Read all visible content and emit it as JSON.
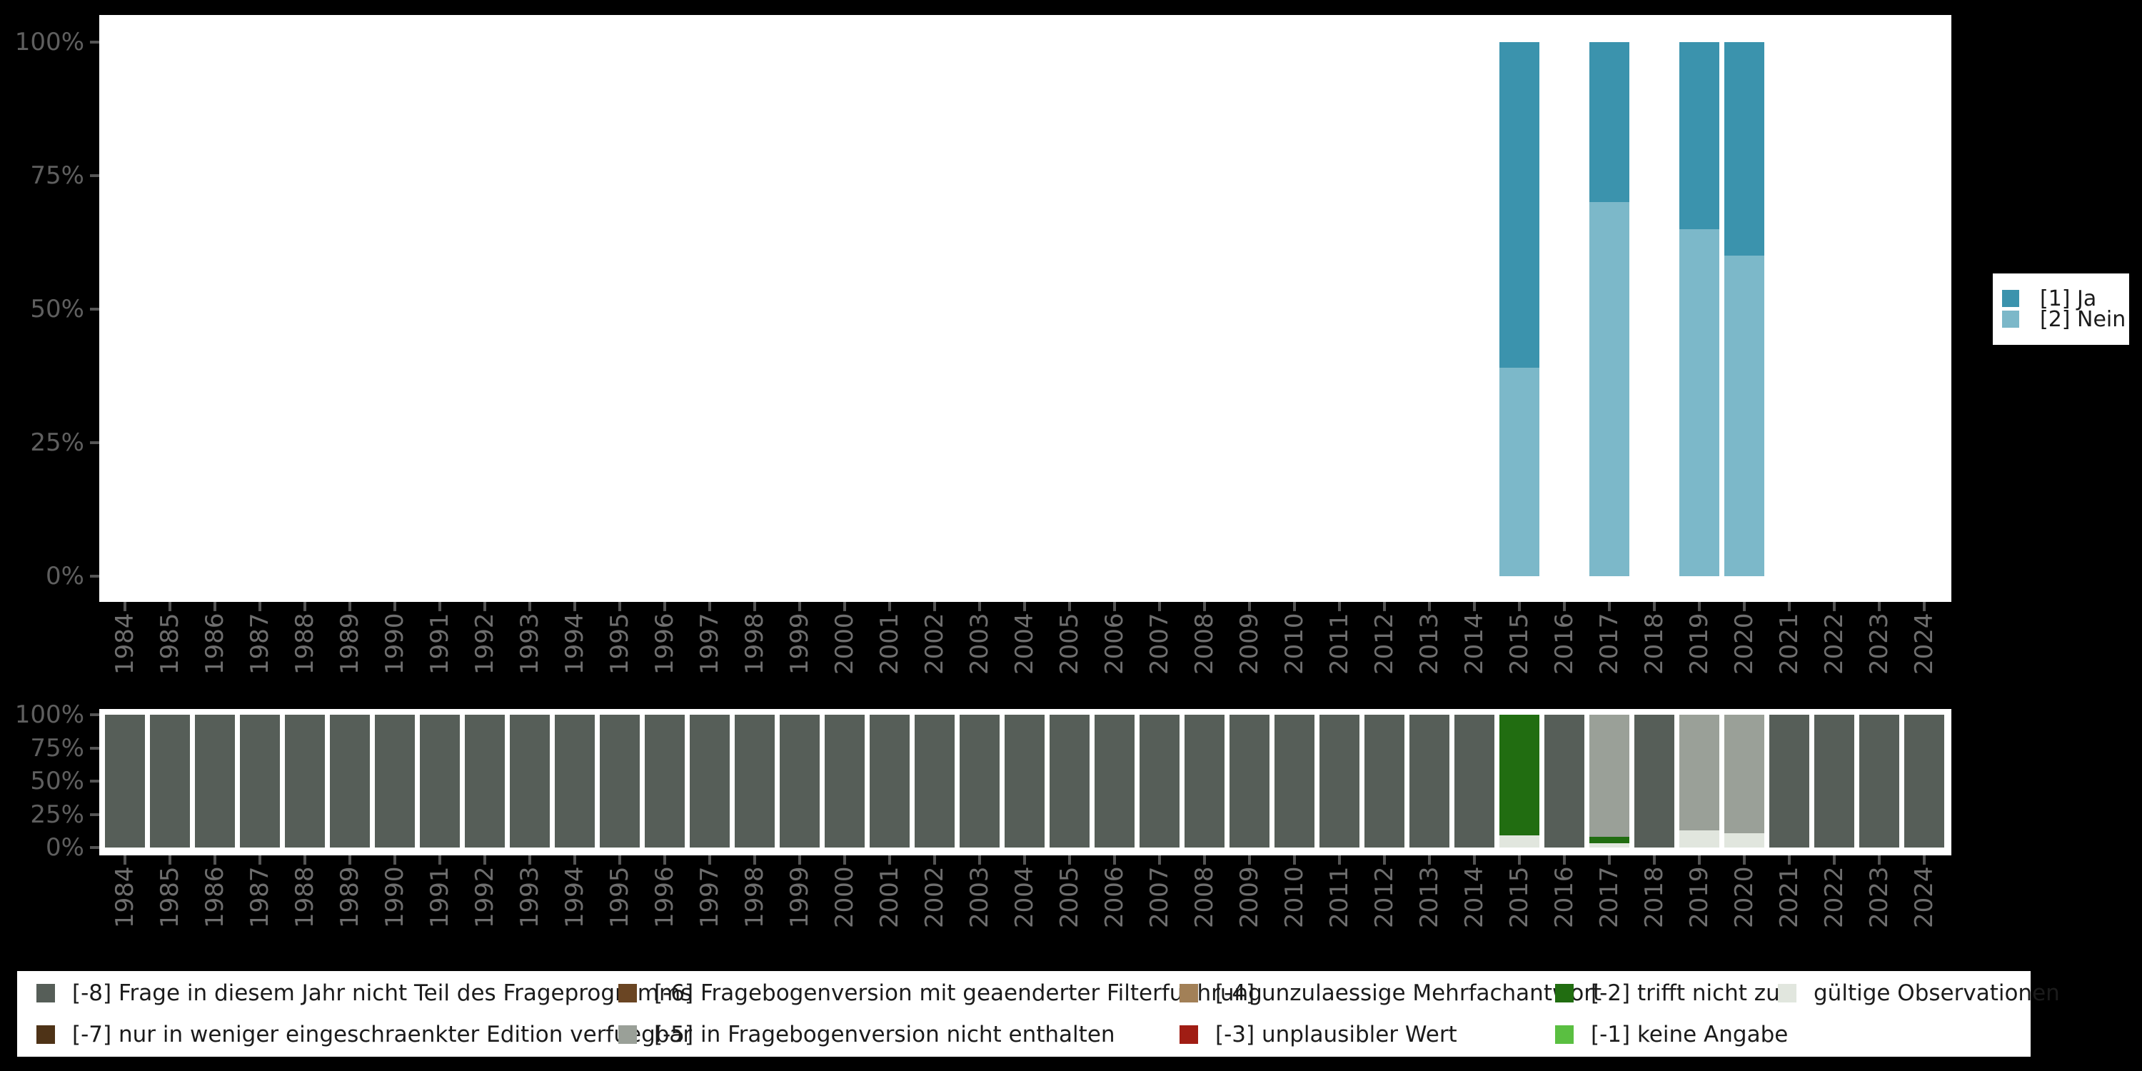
{
  "axes": {
    "percent_ticks": [
      {
        "label": "100%",
        "value": 100
      },
      {
        "label": "75%",
        "value": 75
      },
      {
        "label": "50%",
        "value": 50
      },
      {
        "label": "25%",
        "value": 25
      },
      {
        "label": "0%",
        "value": 0
      }
    ]
  },
  "years": [
    "1984",
    "1985",
    "1986",
    "1987",
    "1988",
    "1989",
    "1990",
    "1991",
    "1992",
    "1993",
    "1994",
    "1995",
    "1996",
    "1997",
    "1998",
    "1999",
    "2000",
    "2001",
    "2002",
    "2003",
    "2004",
    "2005",
    "2006",
    "2007",
    "2008",
    "2009",
    "2010",
    "2011",
    "2012",
    "2013",
    "2014",
    "2015",
    "2016",
    "2017",
    "2018",
    "2019",
    "2020",
    "2021",
    "2022",
    "2023",
    "2024"
  ],
  "top_legend": {
    "items": [
      {
        "code": "ja",
        "label": "[1] Ja",
        "color": "#3b93ad"
      },
      {
        "code": "nein",
        "label": "[2] Nein",
        "color": "#7cb8c9"
      }
    ]
  },
  "bottom_legend": {
    "items": [
      {
        "code": "-8",
        "label": "[-8] Frage in diesem Jahr nicht Teil des Frageprogramms",
        "color": "#565e58",
        "col": 0,
        "row": 0
      },
      {
        "code": "-7",
        "label": "[-7] nur in weniger eingeschraenkter Edition verfuegbar",
        "color": "#4e3317",
        "col": 0,
        "row": 1
      },
      {
        "code": "-6",
        "label": "[-6] Fragebogenversion mit geaenderter Filterfuehrung",
        "color": "#6a4523",
        "col": 1,
        "row": 0
      },
      {
        "code": "-5",
        "label": "[-5] in Fragebogenversion nicht enthalten",
        "color": "#9aa098",
        "col": 1,
        "row": 1
      },
      {
        "code": "-4",
        "label": "[-4] unzulaessige Mehrfachantwort",
        "color": "#a28057",
        "col": 2,
        "row": 0
      },
      {
        "code": "-3",
        "label": "[-3] unplausibler Wert",
        "color": "#a01d14",
        "col": 2,
        "row": 1
      },
      {
        "code": "-2",
        "label": "[-2] trifft nicht zu",
        "color": "#216d11",
        "col": 3,
        "row": 0
      },
      {
        "code": "-1",
        "label": "[-1] keine Angabe",
        "color": "#5abf41",
        "col": 3,
        "row": 1
      },
      {
        "code": "valid",
        "label": "gültige Observationen",
        "color": "#e1e6de",
        "col": 4,
        "row": 0
      }
    ]
  },
  "chart_data": [
    {
      "type": "bar",
      "stacked": true,
      "title": "",
      "xlabel": "",
      "ylabel": "",
      "ylim": [
        0,
        100
      ],
      "yticks_percent": [
        0,
        25,
        50,
        75,
        100
      ],
      "grid": false,
      "legend_position": "right",
      "categories": [
        "1984",
        "1985",
        "1986",
        "1987",
        "1988",
        "1989",
        "1990",
        "1991",
        "1992",
        "1993",
        "1994",
        "1995",
        "1996",
        "1997",
        "1998",
        "1999",
        "2000",
        "2001",
        "2002",
        "2003",
        "2004",
        "2005",
        "2006",
        "2007",
        "2008",
        "2009",
        "2010",
        "2011",
        "2012",
        "2013",
        "2014",
        "2015",
        "2016",
        "2017",
        "2018",
        "2019",
        "2020",
        "2021",
        "2022",
        "2023",
        "2024"
      ],
      "codes": {
        "ja": {
          "label": "[1] Ja",
          "color": "#3b93ad"
        },
        "nein": {
          "label": "[2] Nein",
          "color": "#7cb8c9"
        }
      },
      "bars_by_year": {
        "2015": [
          {
            "code": "ja",
            "pct": 61
          },
          {
            "code": "nein",
            "pct": 39
          }
        ],
        "2017": [
          {
            "code": "ja",
            "pct": 30
          },
          {
            "code": "nein",
            "pct": 70
          }
        ],
        "2019": [
          {
            "code": "ja",
            "pct": 35
          },
          {
            "code": "nein",
            "pct": 65
          }
        ],
        "2020": [
          {
            "code": "ja",
            "pct": 40
          },
          {
            "code": "nein",
            "pct": 60
          }
        ]
      }
    },
    {
      "type": "bar",
      "stacked": true,
      "title": "",
      "xlabel": "",
      "ylabel": "",
      "ylim": [
        0,
        100
      ],
      "yticks_percent": [
        0,
        25,
        50,
        75,
        100
      ],
      "grid": false,
      "legend_position": "bottom",
      "categories": [
        "1984",
        "1985",
        "1986",
        "1987",
        "1988",
        "1989",
        "1990",
        "1991",
        "1992",
        "1993",
        "1994",
        "1995",
        "1996",
        "1997",
        "1998",
        "1999",
        "2000",
        "2001",
        "2002",
        "2003",
        "2004",
        "2005",
        "2006",
        "2007",
        "2008",
        "2009",
        "2010",
        "2011",
        "2012",
        "2013",
        "2014",
        "2015",
        "2016",
        "2017",
        "2018",
        "2019",
        "2020",
        "2021",
        "2022",
        "2023",
        "2024"
      ],
      "codes": {
        "-8": {
          "label": "[-8] Frage in diesem Jahr nicht Teil des Frageprogramms",
          "color": "#565e58"
        },
        "-7": {
          "label": "[-7] nur in weniger eingeschraenkter Edition verfuegbar",
          "color": "#4e3317"
        },
        "-6": {
          "label": "[-6] Fragebogenversion mit geaenderter Filterfuehrung",
          "color": "#6a4523"
        },
        "-5": {
          "label": "[-5] in Fragebogenversion nicht enthalten",
          "color": "#9aa098"
        },
        "-4": {
          "label": "[-4] unzulaessige Mehrfachantwort",
          "color": "#a28057"
        },
        "-3": {
          "label": "[-3] unplausibler Wert",
          "color": "#a01d14"
        },
        "-2": {
          "label": "[-2] trifft nicht zu",
          "color": "#216d11"
        },
        "-1": {
          "label": "[-1] keine Angabe",
          "color": "#5abf41"
        },
        "valid": {
          "label": "gültige Observationen",
          "color": "#e1e6de"
        }
      },
      "bars_by_year": {
        "1984": [
          {
            "code": "-8",
            "pct": 100
          }
        ],
        "1985": [
          {
            "code": "-8",
            "pct": 100
          }
        ],
        "1986": [
          {
            "code": "-8",
            "pct": 100
          }
        ],
        "1987": [
          {
            "code": "-8",
            "pct": 100
          }
        ],
        "1988": [
          {
            "code": "-8",
            "pct": 100
          }
        ],
        "1989": [
          {
            "code": "-8",
            "pct": 100
          }
        ],
        "1990": [
          {
            "code": "-8",
            "pct": 100
          }
        ],
        "1991": [
          {
            "code": "-8",
            "pct": 100
          }
        ],
        "1992": [
          {
            "code": "-8",
            "pct": 100
          }
        ],
        "1993": [
          {
            "code": "-8",
            "pct": 100
          }
        ],
        "1994": [
          {
            "code": "-8",
            "pct": 100
          }
        ],
        "1995": [
          {
            "code": "-8",
            "pct": 100
          }
        ],
        "1996": [
          {
            "code": "-8",
            "pct": 100
          }
        ],
        "1997": [
          {
            "code": "-8",
            "pct": 100
          }
        ],
        "1998": [
          {
            "code": "-8",
            "pct": 100
          }
        ],
        "1999": [
          {
            "code": "-8",
            "pct": 100
          }
        ],
        "2000": [
          {
            "code": "-8",
            "pct": 100
          }
        ],
        "2001": [
          {
            "code": "-8",
            "pct": 100
          }
        ],
        "2002": [
          {
            "code": "-8",
            "pct": 100
          }
        ],
        "2003": [
          {
            "code": "-8",
            "pct": 100
          }
        ],
        "2004": [
          {
            "code": "-8",
            "pct": 100
          }
        ],
        "2005": [
          {
            "code": "-8",
            "pct": 100
          }
        ],
        "2006": [
          {
            "code": "-8",
            "pct": 100
          }
        ],
        "2007": [
          {
            "code": "-8",
            "pct": 100
          }
        ],
        "2008": [
          {
            "code": "-8",
            "pct": 100
          }
        ],
        "2009": [
          {
            "code": "-8",
            "pct": 100
          }
        ],
        "2010": [
          {
            "code": "-8",
            "pct": 100
          }
        ],
        "2011": [
          {
            "code": "-8",
            "pct": 100
          }
        ],
        "2012": [
          {
            "code": "-8",
            "pct": 100
          }
        ],
        "2013": [
          {
            "code": "-8",
            "pct": 100
          }
        ],
        "2014": [
          {
            "code": "-8",
            "pct": 100
          }
        ],
        "2015": [
          {
            "code": "-2",
            "pct": 91
          },
          {
            "code": "valid",
            "pct": 9
          }
        ],
        "2016": [
          {
            "code": "-8",
            "pct": 100
          }
        ],
        "2017": [
          {
            "code": "-5",
            "pct": 92
          },
          {
            "code": "-2",
            "pct": 5
          },
          {
            "code": "valid",
            "pct": 3
          }
        ],
        "2018": [
          {
            "code": "-8",
            "pct": 100
          }
        ],
        "2019": [
          {
            "code": "-5",
            "pct": 87
          },
          {
            "code": "valid",
            "pct": 13
          }
        ],
        "2020": [
          {
            "code": "-5",
            "pct": 89
          },
          {
            "code": "valid",
            "pct": 11
          }
        ],
        "2021": [
          {
            "code": "-8",
            "pct": 100
          }
        ],
        "2022": [
          {
            "code": "-8",
            "pct": 100
          }
        ],
        "2023": [
          {
            "code": "-8",
            "pct": 100
          }
        ],
        "2024": [
          {
            "code": "-8",
            "pct": 100
          }
        ]
      }
    }
  ]
}
